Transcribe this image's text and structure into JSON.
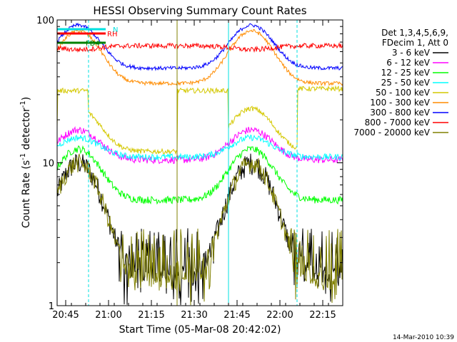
{
  "chart_data": {
    "type": "line",
    "title": "HESSI Observing Summary Count Rates",
    "xlabel": "Start Time (05-Mar-08 20:42:02)",
    "ylabel_main": "Count Rate (s",
    "ylabel_sup1": "-1",
    "ylabel_mid": " detector",
    "ylabel_sup2": "-1",
    "ylabel_end": ")",
    "yscale": "log",
    "ylim": [
      1,
      100
    ],
    "y_ticks": [
      "1",
      "10",
      "100"
    ],
    "x_ticks": [
      "20:45",
      "21:00",
      "21:15",
      "21:30",
      "21:45",
      "22:00",
      "22:15"
    ],
    "x_range_minutes": [
      20.0,
      120.0
    ],
    "legend_header": [
      "Det 1,3,4,5,6,9,",
      "FDecim 1, Att 0"
    ],
    "legend_position": "right",
    "flags": [
      {
        "label": "N",
        "color": "#00e0e0"
      },
      {
        "label": "RH",
        "color": "#ff0000"
      },
      {
        "label": "FD4",
        "color": "#008000"
      }
    ],
    "series": [
      {
        "name": "3 - 6 keV",
        "color": "#000000",
        "orbit_base": 2.1,
        "peak": 10.2
      },
      {
        "name": "6 - 12 keV",
        "color": "#ff00ff",
        "orbit_base": 11.0,
        "peak": 17.0
      },
      {
        "name": "12 - 25 keV",
        "color": "#00ff00",
        "orbit_base": 6.0,
        "peak": 12.5
      },
      {
        "name": "25 - 50 keV",
        "color": "#00ffff",
        "orbit_base": 11.5,
        "peak": 15.0
      },
      {
        "name": "50 - 100 keV",
        "color": "#d4c800",
        "orbit_base": 32.0,
        "peak": 24.0
      },
      {
        "name": "100 - 300 keV",
        "color": "#ff8c00",
        "orbit_base": 36.0,
        "peak": 84.0
      },
      {
        "name": "300 - 800 keV",
        "color": "#0000ff",
        "orbit_base": 47.0,
        "peak": 92.0
      },
      {
        "name": "800 - 7000 keV",
        "color": "#ff0000",
        "orbit_base": 68.0,
        "peak": 62.0
      },
      {
        "name": "7000 - 20000 keV",
        "color": "#808000",
        "orbit_base": 2.0,
        "peak": 10.0
      }
    ],
    "eclipse_intervals_minutes": [
      [
        20.0,
        31.0
      ],
      [
        80.0,
        104.0
      ]
    ],
    "saa_intervals_minutes": [
      [
        62.0,
        80.0
      ]
    ],
    "footer_date": "14-Mar-2010 10:39"
  }
}
